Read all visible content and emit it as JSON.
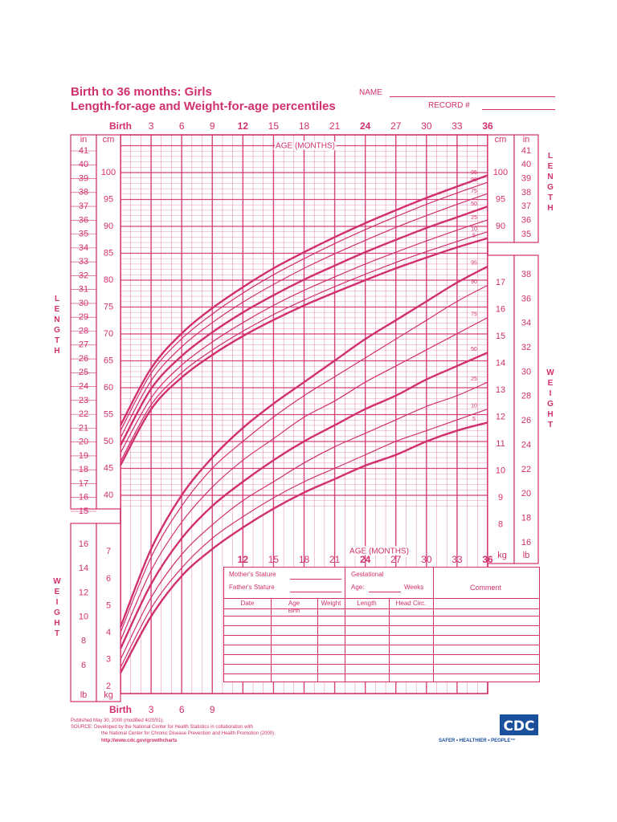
{
  "header": {
    "title_line1": "Birth to 36 months: Girls",
    "title_line2": "Length-for-age and Weight-for-age percentiles",
    "name_label": "NAME",
    "record_label": "RECORD #"
  },
  "side_labels": {
    "length": [
      "L",
      "E",
      "N",
      "G",
      "T",
      "H"
    ],
    "weight": [
      "W",
      "E",
      "I",
      "G",
      "H",
      "T"
    ]
  },
  "record_table": {
    "mothers_stature": "Mother's Stature",
    "fathers_stature": "Father's Stature",
    "gestational": "Gestational",
    "age_label": "Age:",
    "weeks_label": "Weeks",
    "comment": "Comment",
    "columns": [
      "Date",
      "Age",
      "Weight",
      "Length",
      "Head Circ."
    ],
    "birth_label": "Birth"
  },
  "footer": {
    "line1": "Published May 30, 2000 (modified 4/20/01).",
    "line2": "SOURCE: Developed by the National Center for Health Statistics in collaboration with",
    "line3": "the National Center for Chronic Disease Prevention and Health Promotion (2000).",
    "link": "http://www.cdc.gov/growthcharts",
    "logo": "CDC",
    "tagline": "SAFER • HEALTHIER • PEOPLE™"
  },
  "colors": {
    "accent": "#d1306e"
  },
  "chart_data": {
    "type": "line",
    "title": "Length-for-age and Weight-for-age percentiles",
    "subtitle": "Birth to 36 months: Girls",
    "xlabel": "AGE (MONTHS)",
    "x_ticks": [
      "Birth",
      "3",
      "6",
      "9",
      "12",
      "15",
      "18",
      "21",
      "24",
      "27",
      "30",
      "33",
      "36"
    ],
    "xlim": [
      0,
      36
    ],
    "length_axis": {
      "unit_cm": "cm",
      "unit_in": "in",
      "ylim_cm": [
        38,
        105
      ],
      "ylim_in": [
        15,
        41
      ]
    },
    "weight_axis": {
      "unit_kg": "kg",
      "unit_lb": "lb",
      "ylim_kg": [
        1.5,
        18.3
      ],
      "ylim_lb": [
        4,
        38
      ]
    },
    "grid": true,
    "ages": [
      0,
      3,
      6,
      9,
      12,
      15,
      18,
      21,
      24,
      27,
      30,
      33,
      36
    ],
    "length_percentiles": [
      {
        "name": "5",
        "values": [
          45.6,
          56.0,
          61.9,
          66.1,
          69.6,
          72.6,
          75.3,
          77.7,
          80.0,
          82.2,
          84.2,
          86.1,
          87.8
        ]
      },
      {
        "name": "10",
        "values": [
          46.3,
          56.8,
          62.8,
          67.0,
          70.5,
          73.6,
          76.3,
          78.8,
          81.1,
          83.3,
          85.3,
          87.2,
          89.0
        ]
      },
      {
        "name": "25",
        "values": [
          47.9,
          58.1,
          64.2,
          68.5,
          72.1,
          75.3,
          78.1,
          80.6,
          83.0,
          85.2,
          87.3,
          89.3,
          91.2
        ]
      },
      {
        "name": "50",
        "values": [
          49.3,
          59.8,
          65.9,
          70.3,
          74.0,
          77.2,
          80.1,
          82.7,
          85.2,
          87.5,
          89.7,
          91.7,
          93.7
        ]
      },
      {
        "name": "75",
        "values": [
          50.7,
          61.3,
          67.6,
          72.1,
          75.9,
          79.2,
          82.2,
          84.9,
          87.4,
          89.8,
          92.0,
          94.1,
          96.1
        ]
      },
      {
        "name": "90",
        "values": [
          52.0,
          62.7,
          69.1,
          73.7,
          77.6,
          81.0,
          84.0,
          86.8,
          89.4,
          91.8,
          94.1,
          96.2,
          98.2
        ]
      },
      {
        "name": "95",
        "values": [
          53.0,
          63.6,
          70.1,
          74.8,
          78.7,
          82.2,
          85.2,
          88.0,
          90.6,
          93.0,
          95.3,
          97.4,
          99.5
        ]
      }
    ],
    "weight_percentiles": [
      {
        "name": "5",
        "values": [
          2.5,
          4.6,
          6.1,
          7.1,
          7.9,
          8.6,
          9.2,
          9.7,
          10.2,
          10.6,
          11.1,
          11.5,
          11.8
        ]
      },
      {
        "name": "10",
        "values": [
          2.7,
          4.9,
          6.4,
          7.5,
          8.3,
          9.0,
          9.6,
          10.1,
          10.6,
          11.1,
          11.5,
          11.9,
          12.3
        ]
      },
      {
        "name": "25",
        "values": [
          3.0,
          5.3,
          6.9,
          8.0,
          8.9,
          9.6,
          10.3,
          10.9,
          11.4,
          11.9,
          12.4,
          12.8,
          13.3
        ]
      },
      {
        "name": "50",
        "values": [
          3.4,
          5.8,
          7.5,
          8.7,
          9.6,
          10.4,
          11.1,
          11.7,
          12.3,
          12.8,
          13.4,
          13.9,
          14.4
        ]
      },
      {
        "name": "75",
        "values": [
          3.7,
          6.3,
          8.1,
          9.4,
          10.4,
          11.2,
          12.0,
          12.6,
          13.3,
          13.9,
          14.5,
          15.1,
          15.7
        ]
      },
      {
        "name": "90",
        "values": [
          4.0,
          6.8,
          8.7,
          10.1,
          11.1,
          12.0,
          12.8,
          13.5,
          14.2,
          14.9,
          15.6,
          16.3,
          16.9
        ]
      },
      {
        "name": "95",
        "values": [
          4.2,
          7.1,
          9.1,
          10.5,
          11.6,
          12.5,
          13.3,
          14.1,
          14.9,
          15.6,
          16.3,
          17.0,
          17.6
        ]
      }
    ]
  }
}
